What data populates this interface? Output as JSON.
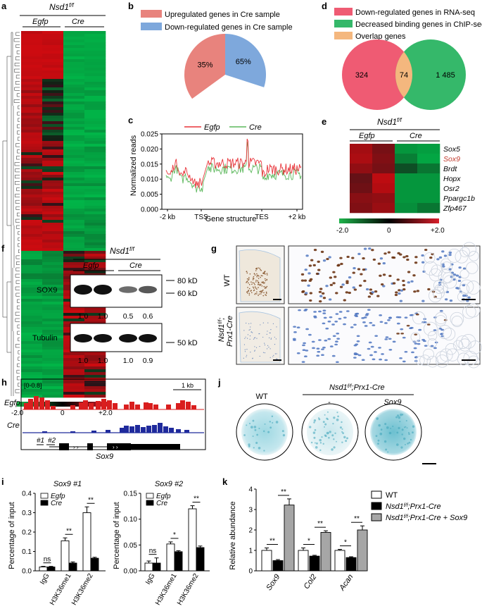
{
  "panels": {
    "a": {
      "letter": "a",
      "header": "Nsd1",
      "header_sup": "f/f",
      "groups": [
        "Egfp",
        "Cre"
      ],
      "scale_min": "-2.0",
      "scale_mid": "0",
      "scale_max": "+2.0"
    },
    "b": {
      "letter": "b",
      "legend": [
        "Upregulated genes in Cre sample",
        "Down-regulated genes in Cre sample"
      ],
      "legend_colors": [
        "#e8837d",
        "#7ea8dc"
      ],
      "slices": [
        {
          "label": "35%",
          "value": 35
        },
        {
          "label": "65%",
          "value": 65
        }
      ]
    },
    "c": {
      "letter": "c",
      "legend": [
        "Egfp",
        "Cre"
      ],
      "colors": [
        "#e8343a",
        "#5cb85c"
      ],
      "ylabel": "Normalized reads",
      "xlabel": "Gene structure",
      "yticks": [
        "0.000",
        "0.005",
        "0.010",
        "0.015",
        "0.020",
        "0.025"
      ],
      "xticks": [
        "-2 kb",
        "TSS",
        "TES",
        "+2 kb"
      ]
    },
    "d": {
      "letter": "d",
      "legend": [
        "Down-regulated genes in RNA-seq",
        "Decreased binding genes in ChIP-seq",
        "Overlap genes"
      ],
      "legend_colors": [
        "#ef5b73",
        "#35b86a",
        "#f4b77e"
      ],
      "left": "324",
      "overlap": "74",
      "right": "1 485"
    },
    "e": {
      "letter": "e",
      "header": "Nsd1",
      "header_sup": "f/f",
      "groups": [
        "Egfp",
        "Cre"
      ],
      "genes": [
        "Sox5",
        "Sox9",
        "Brdt",
        "Hopx",
        "Osr2",
        "Ppargc1b",
        "Zfp467"
      ],
      "highlight_gene": "Sox9",
      "scale_min": "-2.0",
      "scale_mid": "0",
      "scale_max": "+2.0"
    },
    "f": {
      "letter": "f",
      "header": "Nsd1",
      "header_sup": "f/f",
      "groups": [
        "Egfp",
        "Cre"
      ],
      "rows": [
        {
          "label": "SOX9",
          "values": [
            "1.0",
            "1.0",
            "0.5",
            "0.6"
          ]
        },
        {
          "label": "Tubulin",
          "values": [
            "1.0",
            "1.0",
            "1.0",
            "0.9"
          ]
        }
      ],
      "markers": [
        "80 kD",
        "60 kD",
        "50 kD"
      ]
    },
    "g": {
      "letter": "g",
      "row_labels": [
        "WT",
        "Nsd1",
        "Prx1-Cre"
      ],
      "row_label_sup": "f/f"
    },
    "h": {
      "letter": "h",
      "range": "[0-0.8]",
      "scale": "1 kb",
      "tracks": [
        "Egfp",
        "Cre"
      ],
      "track_colors": [
        "#d91e1e",
        "#1f2a9c"
      ],
      "primers": [
        "#1",
        "#2"
      ],
      "gene": "Sox9"
    },
    "i": {
      "letter": "i",
      "charts": [
        {
          "title": "Sox9 #1",
          "ylabel": "Percentage of input",
          "yticks": [
            "0.0",
            "0.1",
            "0.2",
            "0.3",
            "0.4"
          ],
          "categories": [
            "IgG",
            "H3K36me1",
            "H3K36me2"
          ],
          "series": [
            {
              "name": "Egfp",
              "values": [
                0.02,
                0.155,
                0.3
              ]
            },
            {
              "name": "Cre",
              "values": [
                0.02,
                0.04,
                0.065
              ]
            }
          ],
          "sig": [
            "ns",
            "**",
            "**"
          ],
          "ylim": [
            0,
            0.4
          ]
        },
        {
          "title": "Sox9 #2",
          "ylabel": "Percentage of input",
          "yticks": [
            "0.00",
            "0.05",
            "0.10",
            "0.15"
          ],
          "categories": [
            "IgG",
            "H3K36me1",
            "H3K36me2"
          ],
          "series": [
            {
              "name": "Egfp",
              "values": [
                0.015,
                0.052,
                0.12
              ]
            },
            {
              "name": "Cre",
              "values": [
                0.015,
                0.037,
                0.045
              ]
            }
          ],
          "sig": [
            "ns",
            "*",
            "**"
          ],
          "ylim": [
            0,
            0.15
          ]
        }
      ]
    },
    "j": {
      "letter": "j",
      "labels": [
        "WT",
        "Nsd1",
        "Prx1-Cre",
        "-",
        "Sox9"
      ],
      "label_sup": "f/f"
    },
    "k": {
      "letter": "k",
      "ylabel": "Relative abundance",
      "yticks": [
        "0",
        "1",
        "2",
        "3",
        "4"
      ],
      "categories": [
        "Sox9",
        "Col2",
        "Acan"
      ],
      "series": [
        {
          "name": "WT",
          "values": [
            1.0,
            1.0,
            1.0
          ]
        },
        {
          "name": "Nsd1f/f;Prx1-Cre",
          "values": [
            0.5,
            0.72,
            0.65
          ]
        },
        {
          "name": "Nsd1f/f;Prx1-Cre + Sox9",
          "values": [
            3.22,
            1.88,
            2.0
          ]
        }
      ],
      "legend": [
        "WT",
        "Nsd1",
        ";Prx1-Cre",
        ";Prx1-Cre + Sox9"
      ],
      "legend_sup": "f/f",
      "sig": [
        "**",
        "**",
        "*",
        "**",
        "*",
        "**"
      ],
      "ylim": [
        0,
        4
      ]
    }
  },
  "chart_data": [
    {
      "type": "pie",
      "title": "",
      "labels": [
        "Upregulated genes in Cre sample",
        "Down-regulated genes in Cre sample"
      ],
      "values": [
        35,
        65
      ]
    },
    {
      "type": "line",
      "title": "",
      "xlabel": "Gene structure",
      "ylabel": "Normalized reads",
      "ylim": [
        0,
        0.025
      ],
      "series": [
        {
          "name": "Egfp"
        },
        {
          "name": "Cre"
        }
      ]
    },
    {
      "type": "bar",
      "title": "Sox9 #1",
      "ylabel": "Percentage of input",
      "categories": [
        "IgG",
        "H3K36me1",
        "H3K36me2"
      ],
      "series": [
        {
          "name": "Egfp",
          "values": [
            0.02,
            0.155,
            0.3
          ]
        },
        {
          "name": "Cre",
          "values": [
            0.02,
            0.04,
            0.065
          ]
        }
      ],
      "ylim": [
        0,
        0.4
      ]
    },
    {
      "type": "bar",
      "title": "Sox9 #2",
      "ylabel": "Percentage of input",
      "categories": [
        "IgG",
        "H3K36me1",
        "H3K36me2"
      ],
      "series": [
        {
          "name": "Egfp",
          "values": [
            0.015,
            0.052,
            0.12
          ]
        },
        {
          "name": "Cre",
          "values": [
            0.015,
            0.037,
            0.045
          ]
        }
      ],
      "ylim": [
        0,
        0.15
      ]
    },
    {
      "type": "bar",
      "title": "",
      "ylabel": "Relative abundance",
      "categories": [
        "Sox9",
        "Col2",
        "Acan"
      ],
      "series": [
        {
          "name": "WT",
          "values": [
            1.0,
            1.0,
            1.0
          ]
        },
        {
          "name": "Nsd1f/f;Prx1-Cre",
          "values": [
            0.5,
            0.72,
            0.65
          ]
        },
        {
          "name": "Nsd1f/f;Prx1-Cre + Sox9",
          "values": [
            3.22,
            1.88,
            2.0
          ]
        }
      ],
      "ylim": [
        0,
        4
      ]
    }
  ]
}
